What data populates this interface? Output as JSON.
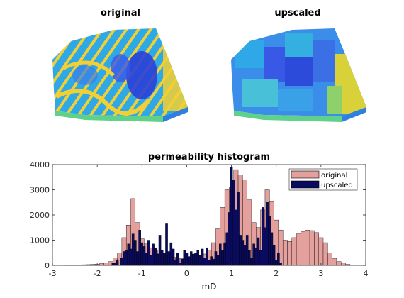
{
  "panels": {
    "left_title": "original",
    "right_title": "upscaled"
  },
  "colors": {
    "original": "#e4a09d",
    "upscaled": "#0a0a5e",
    "field_low": "#2a3fd8",
    "field_mid": "#2fa8e8",
    "field_high": "#f2cf32",
    "field_green": "#5fd18a"
  },
  "chart_data": {
    "type": "bar",
    "title": "permeability histogram",
    "xlabel": "mD",
    "ylabel": "",
    "xlim": [
      -3,
      4
    ],
    "ylim": [
      0,
      4000
    ],
    "xticks": [
      -3,
      -2,
      -1,
      0,
      1,
      2,
      3,
      4
    ],
    "yticks": [
      0,
      1000,
      2000,
      3000,
      4000
    ],
    "legend_position": "top-right",
    "bin_width": 0.1,
    "series": [
      {
        "name": "original",
        "color": "#e4a09d",
        "bins": [
          [
            -2.7,
            10
          ],
          [
            -2.6,
            15
          ],
          [
            -2.5,
            15
          ],
          [
            -2.4,
            20
          ],
          [
            -2.3,
            25
          ],
          [
            -2.2,
            30
          ],
          [
            -2.1,
            40
          ],
          [
            -2.0,
            50
          ],
          [
            -1.9,
            70
          ],
          [
            -1.8,
            90
          ],
          [
            -1.7,
            150
          ],
          [
            -1.6,
            300
          ],
          [
            -1.5,
            500
          ],
          [
            -1.4,
            1100
          ],
          [
            -1.3,
            1600
          ],
          [
            -1.2,
            2650
          ],
          [
            -1.1,
            1700
          ],
          [
            -1.0,
            1050
          ],
          [
            -0.9,
            850
          ],
          [
            -0.8,
            700
          ],
          [
            -0.7,
            600
          ],
          [
            -0.6,
            500
          ],
          [
            -0.5,
            450
          ],
          [
            -0.4,
            380
          ],
          [
            -0.3,
            320
          ],
          [
            -0.2,
            300
          ],
          [
            -0.1,
            280
          ],
          [
            0.0,
            250
          ],
          [
            0.1,
            280
          ],
          [
            0.2,
            300
          ],
          [
            0.3,
            350
          ],
          [
            0.4,
            450
          ],
          [
            0.5,
            600
          ],
          [
            0.6,
            900
          ],
          [
            0.7,
            1450
          ],
          [
            0.8,
            2300
          ],
          [
            0.9,
            3000
          ],
          [
            1.0,
            3100
          ],
          [
            1.1,
            3800
          ],
          [
            1.2,
            3600
          ],
          [
            1.3,
            3400
          ],
          [
            1.4,
            2600
          ],
          [
            1.5,
            1700
          ],
          [
            1.6,
            1500
          ],
          [
            1.7,
            2200
          ],
          [
            1.8,
            3000
          ],
          [
            1.9,
            2550
          ],
          [
            2.0,
            1800
          ],
          [
            2.1,
            1400
          ],
          [
            2.2,
            1000
          ],
          [
            2.3,
            950
          ],
          [
            2.4,
            1100
          ],
          [
            2.5,
            1250
          ],
          [
            2.6,
            1350
          ],
          [
            2.7,
            1400
          ],
          [
            2.8,
            1380
          ],
          [
            2.9,
            1300
          ],
          [
            3.0,
            1100
          ],
          [
            3.1,
            900
          ],
          [
            3.2,
            500
          ],
          [
            3.3,
            280
          ],
          [
            3.4,
            150
          ],
          [
            3.5,
            90
          ],
          [
            3.6,
            40
          ]
        ]
      },
      {
        "name": "upscaled",
        "color": "#0a0a5e",
        "bins": [
          [
            -1.65,
            100
          ],
          [
            -1.6,
            80
          ],
          [
            -1.55,
            200
          ],
          [
            -1.45,
            280
          ],
          [
            -1.4,
            550
          ],
          [
            -1.35,
            600
          ],
          [
            -1.3,
            850
          ],
          [
            -1.25,
            650
          ],
          [
            -1.2,
            1250
          ],
          [
            -1.15,
            1000
          ],
          [
            -1.1,
            550
          ],
          [
            -1.05,
            1400
          ],
          [
            -1.0,
            900
          ],
          [
            -0.95,
            750
          ],
          [
            -0.9,
            500
          ],
          [
            -0.85,
            1000
          ],
          [
            -0.8,
            400
          ],
          [
            -0.75,
            850
          ],
          [
            -0.7,
            700
          ],
          [
            -0.65,
            450
          ],
          [
            -0.6,
            1200
          ],
          [
            -0.55,
            600
          ],
          [
            -0.5,
            500
          ],
          [
            -0.45,
            1650
          ],
          [
            -0.4,
            550
          ],
          [
            -0.35,
            900
          ],
          [
            -0.3,
            650
          ],
          [
            -0.25,
            200
          ],
          [
            -0.2,
            500
          ],
          [
            -0.15,
            100
          ],
          [
            -0.1,
            250
          ],
          [
            -0.05,
            600
          ],
          [
            0.0,
            500
          ],
          [
            0.05,
            350
          ],
          [
            0.1,
            550
          ],
          [
            0.15,
            450
          ],
          [
            0.2,
            500
          ],
          [
            0.25,
            600
          ],
          [
            0.3,
            400
          ],
          [
            0.35,
            650
          ],
          [
            0.4,
            300
          ],
          [
            0.45,
            700
          ],
          [
            0.5,
            200
          ],
          [
            0.55,
            350
          ],
          [
            0.6,
            250
          ],
          [
            0.65,
            550
          ],
          [
            0.7,
            400
          ],
          [
            0.75,
            850
          ],
          [
            0.8,
            600
          ],
          [
            0.85,
            900
          ],
          [
            0.9,
            1300
          ],
          [
            0.95,
            2100
          ],
          [
            1.0,
            3900
          ],
          [
            1.05,
            3400
          ],
          [
            1.1,
            2200
          ],
          [
            1.15,
            2900
          ],
          [
            1.2,
            1200
          ],
          [
            1.25,
            1000
          ],
          [
            1.3,
            800
          ],
          [
            1.35,
            1200
          ],
          [
            1.4,
            600
          ],
          [
            1.45,
            300
          ],
          [
            1.5,
            850
          ],
          [
            1.55,
            700
          ],
          [
            1.6,
            1100
          ],
          [
            1.65,
            600
          ],
          [
            1.7,
            2300
          ],
          [
            1.75,
            1500
          ],
          [
            1.8,
            2500
          ],
          [
            1.85,
            1950
          ],
          [
            1.9,
            1300
          ],
          [
            1.95,
            800
          ],
          [
            2.0,
            200
          ],
          [
            2.05,
            500
          ],
          [
            2.1,
            100
          ]
        ]
      }
    ]
  }
}
